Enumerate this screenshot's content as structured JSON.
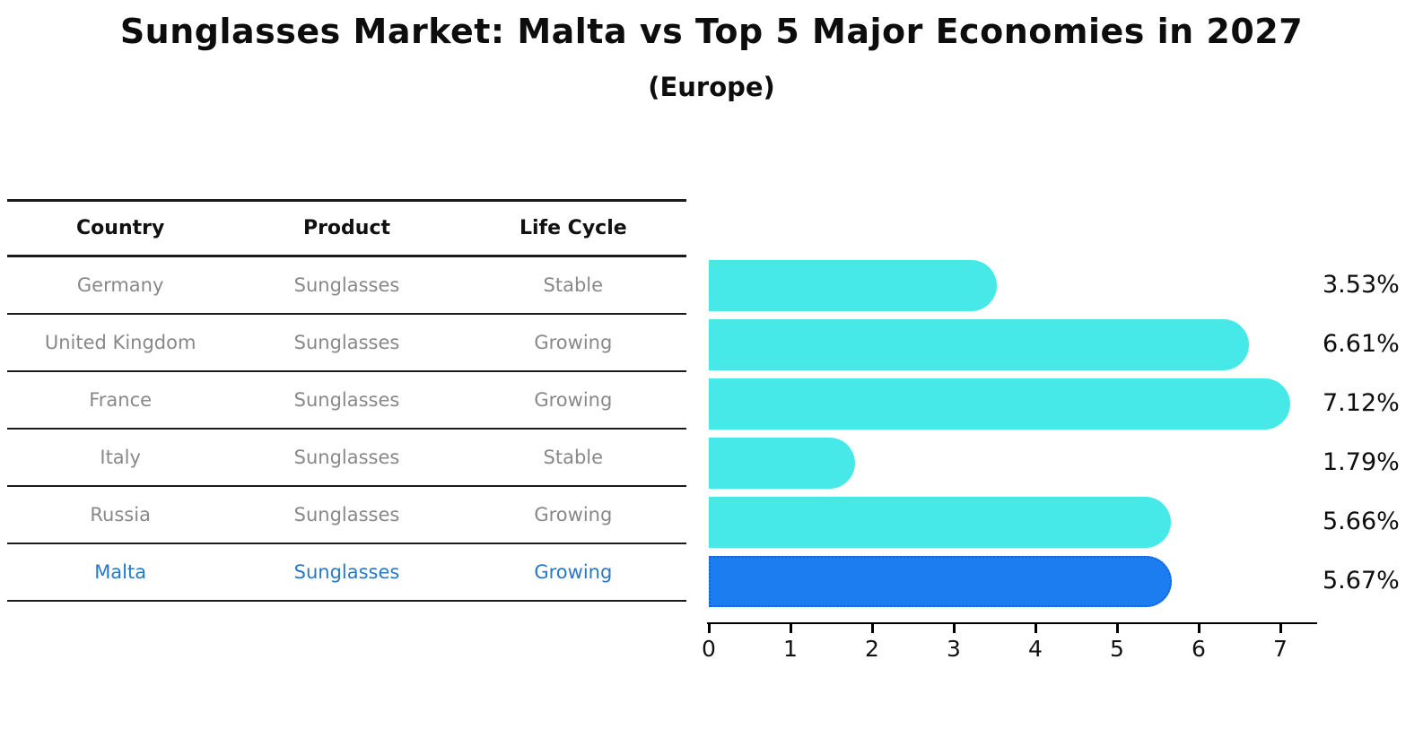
{
  "title": "Sunglasses Market: Malta vs Top 5 Major Economies in 2027",
  "subtitle": "(Europe)",
  "table": {
    "headers": [
      "Country",
      "Product",
      "Life Cycle"
    ],
    "rows": [
      {
        "country": "Germany",
        "product": "Sunglasses",
        "life_cycle": "Stable",
        "highlight": false
      },
      {
        "country": "United Kingdom",
        "product": "Sunglasses",
        "life_cycle": "Growing",
        "highlight": false
      },
      {
        "country": "France",
        "product": "Sunglasses",
        "life_cycle": "Growing",
        "highlight": false
      },
      {
        "country": "Italy",
        "product": "Sunglasses",
        "life_cycle": "Stable",
        "highlight": false
      },
      {
        "country": "Russia",
        "product": "Sunglasses",
        "life_cycle": "Growing",
        "highlight": false
      },
      {
        "country": "Malta",
        "product": "Sunglasses",
        "life_cycle": "Growing",
        "highlight": true
      }
    ]
  },
  "chart_data": {
    "type": "bar",
    "orientation": "horizontal",
    "title": "Sunglasses Market: Malta vs Top 5 Major Economies in 2027",
    "subtitle": "(Europe)",
    "categories": [
      "Germany",
      "United Kingdom",
      "France",
      "Italy",
      "Russia",
      "Malta"
    ],
    "values": [
      3.53,
      6.61,
      7.12,
      1.79,
      5.66,
      5.67
    ],
    "value_labels": [
      "3.53%",
      "6.61%",
      "7.12%",
      "1.79%",
      "5.66%",
      "5.67%"
    ],
    "xlim": [
      0,
      7.45
    ],
    "x_ticks": [
      0,
      1,
      2,
      3,
      4,
      5,
      6,
      7
    ],
    "grid": false,
    "legend": false,
    "highlight_index": 5
  },
  "colors": {
    "bar": "#46e8e8",
    "highlight_bar": "#1b7df0",
    "highlight_bar_border": "#1464d8",
    "highlight_text": "#2878c8",
    "header_text": "#111111",
    "row_text": "#888888",
    "label_text": "#0d0d0d"
  }
}
